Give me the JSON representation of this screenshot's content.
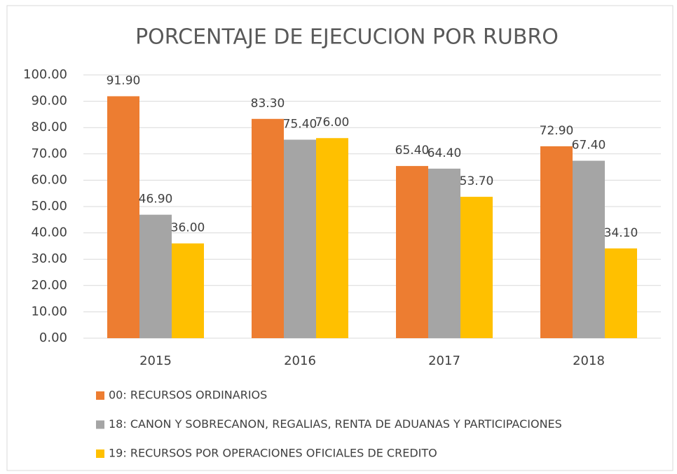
{
  "chart_data": {
    "type": "bar",
    "title": "PORCENTAJE DE EJECUCION POR RUBRO",
    "categories": [
      "2015",
      "2016",
      "2017",
      "2018"
    ],
    "series": [
      {
        "name": "00: RECURSOS ORDINARIOS",
        "color": "#ed7d31",
        "values": [
          91.9,
          83.3,
          65.4,
          72.9
        ],
        "value_labels": [
          "91.90",
          "83.30",
          "65.40",
          "72.90"
        ]
      },
      {
        "name": "18: CANON Y SOBRECANON, REGALIAS, RENTA DE ADUANAS Y PARTICIPACIONES",
        "color": "#a5a5a5",
        "values": [
          46.9,
          75.4,
          64.4,
          67.4
        ],
        "value_labels": [
          "46.90",
          "75.40",
          "64.40",
          "67.40"
        ]
      },
      {
        "name": "19: RECURSOS POR OPERACIONES OFICIALES DE CREDITO",
        "color": "#ffc000",
        "values": [
          36.0,
          76.0,
          53.7,
          34.1
        ],
        "value_labels": [
          "36.00",
          "76.00",
          "53.70",
          "34.10"
        ]
      }
    ],
    "ylim": [
      0,
      100
    ],
    "yticks": [
      {
        "value": 0,
        "label": "0.00"
      },
      {
        "value": 10,
        "label": "10.00"
      },
      {
        "value": 20,
        "label": "20.00"
      },
      {
        "value": 30,
        "label": "30.00"
      },
      {
        "value": 40,
        "label": "40.00"
      },
      {
        "value": 50,
        "label": "50.00"
      },
      {
        "value": 60,
        "label": "60.00"
      },
      {
        "value": 70,
        "label": "70.00"
      },
      {
        "value": 80,
        "label": "80.00"
      },
      {
        "value": 90,
        "label": "90.00"
      },
      {
        "value": 100,
        "label": "100.00"
      }
    ],
    "grid": true,
    "legend": "bottom"
  }
}
